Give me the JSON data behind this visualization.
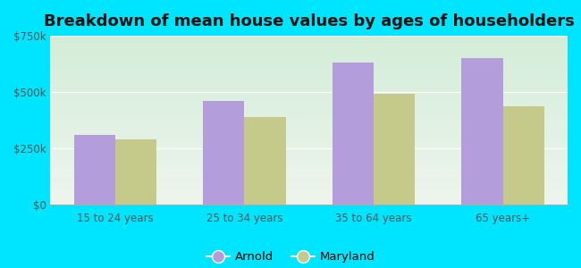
{
  "title": "Breakdown of mean house values by ages of householders",
  "categories": [
    "15 to 24 years",
    "25 to 34 years",
    "35 to 64 years",
    "65 years+"
  ],
  "arnold_values": [
    310000,
    460000,
    630000,
    650000
  ],
  "maryland_values": [
    290000,
    390000,
    490000,
    435000
  ],
  "arnold_color": "#b39ddb",
  "maryland_color": "#c5c98a",
  "background_color": "#00e5ff",
  "grad_top": "#d4edd8",
  "grad_bottom": "#eef5ee",
  "ylim": [
    0,
    750000
  ],
  "yticks": [
    0,
    250000,
    500000,
    750000
  ],
  "ytick_labels": [
    "$0",
    "$250k",
    "$500k",
    "$750k"
  ],
  "legend_labels": [
    "Arnold",
    "Maryland"
  ],
  "title_fontsize": 13,
  "tick_fontsize": 8.5,
  "legend_fontsize": 9.5
}
